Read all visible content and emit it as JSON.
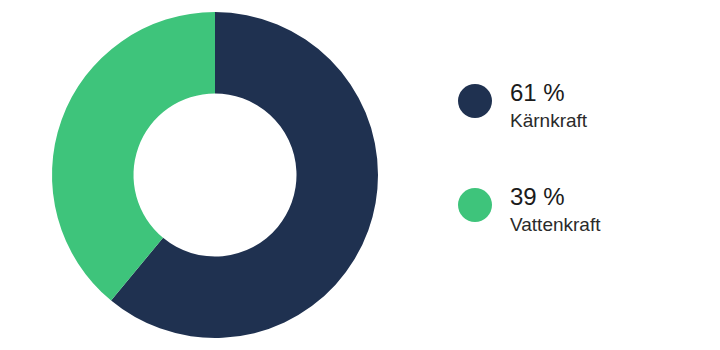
{
  "chart_data": {
    "type": "doughnut",
    "categories": [
      "Kärnkraft",
      "Vattenkraft"
    ],
    "values": [
      61,
      39
    ],
    "value_labels": [
      "61 %",
      "39 %"
    ],
    "colors": [
      "#1f3150",
      "#3ec47b"
    ],
    "legend": "right"
  }
}
